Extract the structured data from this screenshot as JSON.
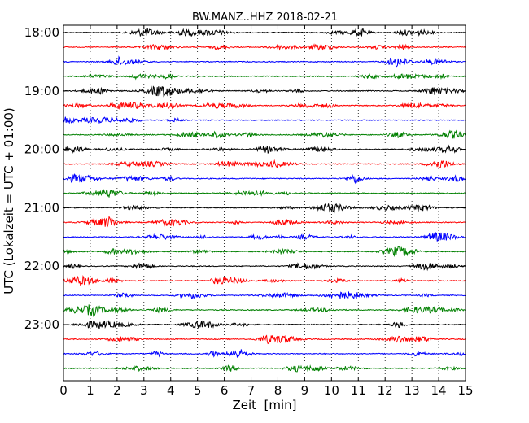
{
  "chart_data": {
    "type": "line",
    "title": "BW.MANZ..HHZ 2018-02-21",
    "xlabel": "Zeit  [min]",
    "ylabel": "UTC (Lokalzeit = UTC + 01:00)",
    "xlim": [
      0,
      15
    ],
    "x_ticks": [
      "0",
      "1",
      "2",
      "3",
      "4",
      "5",
      "6",
      "7",
      "8",
      "9",
      "10",
      "11",
      "12",
      "13",
      "14",
      "15"
    ],
    "y_tick_labels": [
      "18:00",
      "19:00",
      "20:00",
      "21:00",
      "22:00",
      "23:00"
    ],
    "traces_per_hour": 4,
    "minutes_per_trace": 15,
    "start_time": "18:00",
    "trace_count": 24,
    "trace_colors": [
      "#000000",
      "#ff0000",
      "#0000ff",
      "#008000"
    ],
    "grid": "vertical-dotted"
  }
}
